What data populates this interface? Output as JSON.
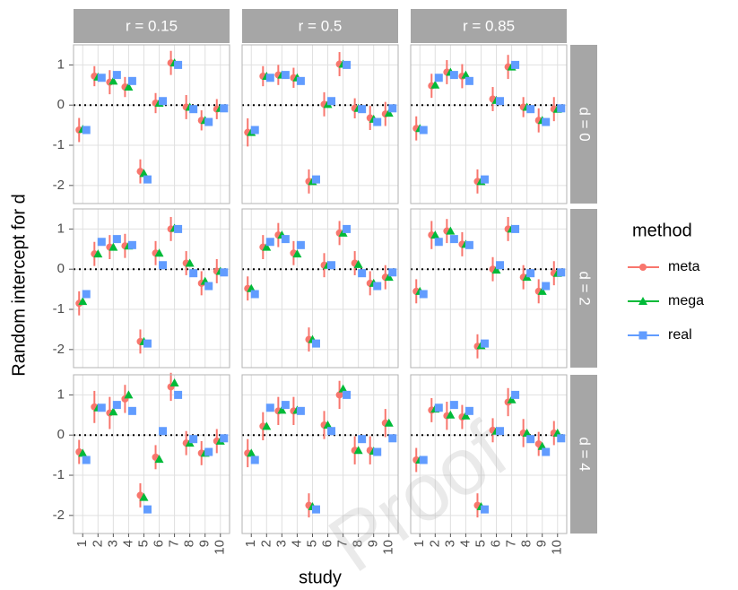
{
  "chart_data": {
    "type": "scatter",
    "xlabel": "study",
    "ylabel": "Random intercept for d",
    "legend_title": "method",
    "watermark": "Proof",
    "categories": [
      "1",
      "2",
      "3",
      "4",
      "5",
      "6",
      "7",
      "8",
      "9",
      "10"
    ],
    "ylim": [
      -2.45,
      1.5
    ],
    "yticks": [
      -2,
      -1,
      0,
      1
    ],
    "hline": 0,
    "columns": [
      "r = 0.15",
      "r = 0.5",
      "r = 0.85"
    ],
    "rows": [
      "d = 0",
      "d = 2",
      "d = 4"
    ],
    "series": [
      {
        "name": "meta",
        "color": "#f8766d",
        "marker": "circle"
      },
      {
        "name": "mega",
        "color": "#00ba38",
        "marker": "triangle"
      },
      {
        "name": "real",
        "color": "#619cff",
        "marker": "square"
      }
    ],
    "panels": [
      [
        {
          "meta": [
            -0.62,
            0.72,
            0.57,
            0.45,
            -1.65,
            0.05,
            1.05,
            -0.05,
            -0.38,
            -0.1
          ],
          "meta_error": [
            0.3,
            0.25,
            0.3,
            0.25,
            0.3,
            0.25,
            0.3,
            0.3,
            0.25,
            0.25
          ],
          "mega": [
            -0.6,
            0.7,
            0.6,
            0.45,
            -1.7,
            0.05,
            1.05,
            -0.05,
            -0.38,
            -0.08
          ],
          "real": [
            -0.62,
            0.68,
            0.75,
            0.6,
            -1.85,
            0.1,
            1.0,
            -0.1,
            -0.42,
            -0.08
          ]
        },
        {
          "meta": [
            -0.68,
            0.72,
            0.75,
            0.68,
            -1.9,
            0.02,
            1.02,
            -0.08,
            -0.32,
            -0.22
          ],
          "meta_error": [
            0.35,
            0.25,
            0.25,
            0.25,
            0.3,
            0.3,
            0.3,
            0.25,
            0.3,
            0.3
          ],
          "mega": [
            -0.68,
            0.72,
            0.75,
            0.68,
            -1.9,
            0.02,
            1.02,
            -0.08,
            -0.35,
            -0.2
          ],
          "real": [
            -0.62,
            0.68,
            0.75,
            0.6,
            -1.85,
            0.1,
            1.0,
            -0.1,
            -0.42,
            -0.08
          ]
        },
        {
          "meta": [
            -0.58,
            0.48,
            0.82,
            0.72,
            -1.9,
            0.15,
            0.95,
            -0.05,
            -0.38,
            -0.1
          ],
          "meta_error": [
            0.3,
            0.3,
            0.3,
            0.3,
            0.3,
            0.3,
            0.3,
            0.25,
            0.3,
            0.3
          ],
          "mega": [
            -0.58,
            0.5,
            0.82,
            0.75,
            -1.9,
            0.12,
            0.95,
            -0.05,
            -0.38,
            -0.1
          ],
          "real": [
            -0.62,
            0.68,
            0.75,
            0.6,
            -1.85,
            0.1,
            1.0,
            -0.1,
            -0.42,
            -0.08
          ]
        }
      ],
      [
        {
          "meta": [
            -0.85,
            0.38,
            0.55,
            0.58,
            -1.8,
            0.4,
            1.0,
            0.15,
            -0.35,
            -0.05
          ],
          "meta_error": [
            0.3,
            0.3,
            0.3,
            0.3,
            0.3,
            0.3,
            0.3,
            0.3,
            0.3,
            0.3
          ],
          "mega": [
            -0.8,
            0.38,
            0.55,
            0.58,
            -1.8,
            0.4,
            1.02,
            0.15,
            -0.3,
            -0.05
          ],
          "real": [
            -0.62,
            0.68,
            0.75,
            0.6,
            -1.85,
            0.1,
            1.0,
            -0.1,
            -0.42,
            -0.08
          ]
        },
        {
          "meta": [
            -0.48,
            0.55,
            0.85,
            0.4,
            -1.75,
            0.1,
            0.9,
            0.15,
            -0.35,
            -0.2
          ],
          "meta_error": [
            0.3,
            0.3,
            0.3,
            0.3,
            0.3,
            0.3,
            0.3,
            0.3,
            0.3,
            0.3
          ],
          "mega": [
            -0.48,
            0.55,
            0.85,
            0.38,
            -1.75,
            0.1,
            0.9,
            0.12,
            -0.35,
            -0.2
          ],
          "real": [
            -0.62,
            0.68,
            0.75,
            0.6,
            -1.85,
            0.1,
            1.0,
            -0.1,
            -0.42,
            -0.08
          ]
        },
        {
          "meta": [
            -0.55,
            0.85,
            0.95,
            0.62,
            -1.92,
            0.0,
            1.0,
            -0.2,
            -0.55,
            -0.1
          ],
          "meta_error": [
            0.3,
            0.35,
            0.3,
            0.3,
            0.3,
            0.3,
            0.3,
            0.3,
            0.3,
            0.3
          ],
          "mega": [
            -0.55,
            0.85,
            0.95,
            0.62,
            -1.9,
            -0.02,
            1.0,
            -0.2,
            -0.55,
            -0.1
          ],
          "real": [
            -0.62,
            0.68,
            0.75,
            0.6,
            -1.85,
            0.1,
            1.0,
            -0.1,
            -0.42,
            -0.08
          ]
        }
      ],
      [
        {
          "meta": [
            -0.42,
            0.7,
            0.55,
            0.9,
            -1.5,
            -0.55,
            1.2,
            -0.2,
            -0.45,
            -0.15
          ],
          "meta_error": [
            0.3,
            0.4,
            0.4,
            0.35,
            0.3,
            0.3,
            0.35,
            0.3,
            0.3,
            0.3
          ],
          "mega": [
            -0.45,
            0.68,
            0.58,
            1.0,
            -1.55,
            -0.6,
            1.3,
            -0.2,
            -0.45,
            -0.15
          ],
          "real": [
            -0.62,
            0.68,
            0.75,
            0.6,
            -1.85,
            0.1,
            1.0,
            -0.1,
            -0.42,
            -0.08
          ]
        },
        {
          "meta": [
            -0.45,
            0.22,
            0.6,
            0.6,
            -1.75,
            0.25,
            1.0,
            -0.38,
            -0.38,
            0.3
          ],
          "meta_error": [
            0.35,
            0.35,
            0.35,
            0.35,
            0.3,
            0.35,
            0.35,
            0.35,
            0.35,
            0.35
          ],
          "mega": [
            -0.45,
            0.22,
            0.62,
            0.62,
            -1.78,
            0.25,
            1.15,
            -0.38,
            -0.4,
            0.3
          ],
          "real": [
            -0.62,
            0.68,
            0.75,
            0.6,
            -1.85,
            0.1,
            1.0,
            -0.1,
            -0.42,
            -0.08
          ]
        },
        {
          "meta": [
            -0.62,
            0.62,
            0.48,
            0.45,
            -1.75,
            0.12,
            0.82,
            0.05,
            -0.22,
            0.05
          ],
          "meta_error": [
            0.3,
            0.3,
            0.35,
            0.3,
            0.3,
            0.3,
            0.35,
            0.35,
            0.3,
            0.3
          ],
          "mega": [
            -0.62,
            0.65,
            0.5,
            0.48,
            -1.78,
            0.1,
            0.88,
            0.05,
            -0.28,
            0.05
          ],
          "real": [
            -0.62,
            0.68,
            0.75,
            0.6,
            -1.85,
            0.1,
            1.0,
            -0.1,
            -0.42,
            -0.08
          ]
        }
      ]
    ]
  }
}
